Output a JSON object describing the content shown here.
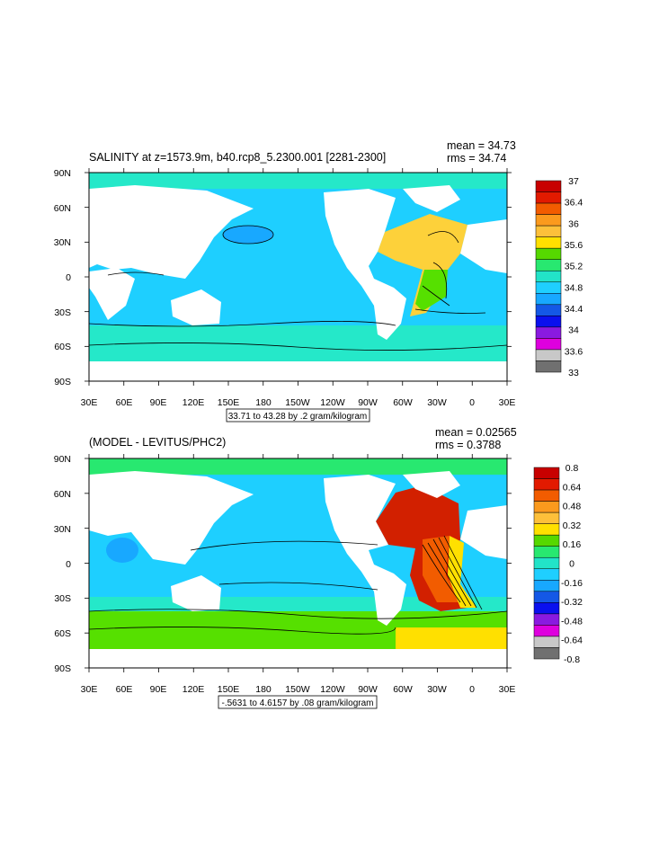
{
  "chart_data": [
    {
      "type": "heatmap",
      "title": "SALINITY at z=1573.9m, b40.rcp8_5.2300.001 [2281-2300]",
      "stats": {
        "mean": "mean = 34.73",
        "rms": "rms = 34.74"
      },
      "contour_info": "33.71 to 43.28 by .2 gram/kilogram",
      "x_ticks": [
        "30E",
        "60E",
        "90E",
        "120E",
        "150E",
        "180",
        "150W",
        "120W",
        "90W",
        "60W",
        "30W",
        "0",
        "30E"
      ],
      "y_ticks": [
        "90N",
        "60N",
        "30N",
        "0",
        "30S",
        "60S",
        "90S"
      ],
      "colorbar": {
        "labels": [
          "37",
          "36.4",
          "36",
          "35.6",
          "35.2",
          "34.8",
          "34.4",
          "34",
          "33.6",
          "33"
        ],
        "colors": [
          "#c80000",
          "#e21a00",
          "#f25c00",
          "#fb9a1d",
          "#fdc03a",
          "#ffe000",
          "#56d800",
          "#28e870",
          "#22e3c8",
          "#1fcfff",
          "#18a8ff",
          "#1458e6",
          "#0a10ee",
          "#8a1ae0",
          "#de00de",
          "#c8c8c8",
          "#707070"
        ]
      }
    },
    {
      "type": "heatmap",
      "title": "(MODEL - LEVITUS/PHC2)",
      "stats": {
        "mean": "mean = 0.02565",
        "rms": "rms = 0.3788"
      },
      "contour_info": "-.5631 to 4.6157 by .08 gram/kilogram",
      "x_ticks": [
        "30E",
        "60E",
        "90E",
        "120E",
        "150E",
        "180",
        "150W",
        "120W",
        "90W",
        "60W",
        "30W",
        "0",
        "30E"
      ],
      "y_ticks": [
        "90N",
        "60N",
        "30N",
        "0",
        "30S",
        "60S",
        "90S"
      ],
      "colorbar": {
        "labels": [
          "0.8",
          "0.64",
          "0.48",
          "0.32",
          "0.16",
          "0",
          "-0.16",
          "-0.32",
          "-0.48",
          "-0.64",
          "-0.8"
        ],
        "colors": [
          "#c80000",
          "#e21a00",
          "#f25c00",
          "#fb9a1d",
          "#fdc03a",
          "#ffe000",
          "#56d800",
          "#28e870",
          "#22e3c8",
          "#1fcfff",
          "#18a8ff",
          "#1458e6",
          "#0a10ee",
          "#8a1ae0",
          "#de00de",
          "#c8c8c8",
          "#707070"
        ]
      }
    }
  ],
  "colors": {
    "land": "#ffffff",
    "panel1_ocean": "#1ecfff",
    "panel1_north": "#25e8c9",
    "panel1_south": "#25e8c9",
    "panel1_atlantic": "#fdd13a",
    "panel2_ocean": "#1ecfff",
    "panel2_south": "#56e000",
    "panel2_atlantic": "#d22000"
  }
}
